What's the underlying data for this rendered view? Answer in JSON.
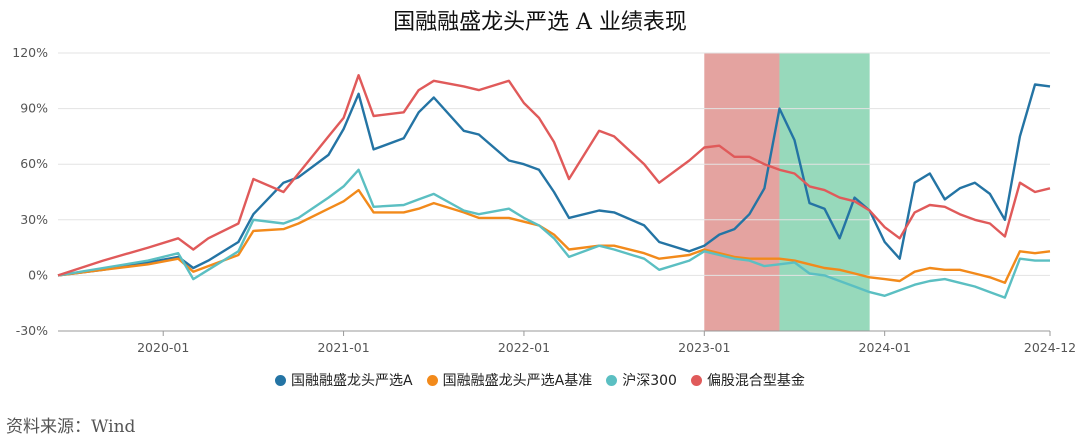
{
  "chart_data": {
    "type": "line",
    "title": "国融融盛龙头严选 A 业绩表现",
    "y_ticks": [
      "120%",
      "90%",
      "60%",
      "30%",
      "0%",
      "-30%"
    ],
    "x_ticks": [
      "2020-01",
      "2021-01",
      "2022-01",
      "2023-01",
      "2024-01",
      "2024-12"
    ],
    "ylim": [
      -30,
      120
    ],
    "xlim": [
      "2019-06",
      "2024-12"
    ],
    "grid": "horizontal",
    "legend_position": "bottom",
    "shaded_periods": [
      {
        "start": "2023-01",
        "end": "2023-06",
        "color": "#d97f7c"
      },
      {
        "start": "2023-06",
        "end": "2023-12",
        "color": "#6fcaa1"
      }
    ],
    "series": [
      {
        "name": "国融融盛龙头严选A",
        "color": "#2474a4",
        "points": [
          [
            "2019-06",
            0
          ],
          [
            "2019-09",
            3
          ],
          [
            "2019-12",
            7
          ],
          [
            "2020-02",
            10
          ],
          [
            "2020-03",
            4
          ],
          [
            "2020-04",
            8
          ],
          [
            "2020-06",
            18
          ],
          [
            "2020-07",
            33
          ],
          [
            "2020-09",
            50
          ],
          [
            "2020-10",
            53
          ],
          [
            "2020-12",
            65
          ],
          [
            "2021-01",
            79
          ],
          [
            "2021-02",
            98
          ],
          [
            "2021-03",
            68
          ],
          [
            "2021-05",
            74
          ],
          [
            "2021-06",
            88
          ],
          [
            "2021-07",
            96
          ],
          [
            "2021-09",
            78
          ],
          [
            "2021-10",
            76
          ],
          [
            "2021-12",
            62
          ],
          [
            "2022-01",
            60
          ],
          [
            "2022-02",
            57
          ],
          [
            "2022-03",
            45
          ],
          [
            "2022-04",
            31
          ],
          [
            "2022-06",
            35
          ],
          [
            "2022-07",
            34
          ],
          [
            "2022-09",
            27
          ],
          [
            "2022-10",
            18
          ],
          [
            "2022-12",
            13
          ],
          [
            "2023-01",
            16
          ],
          [
            "2023-02",
            22
          ],
          [
            "2023-03",
            25
          ],
          [
            "2023-04",
            33
          ],
          [
            "2023-05",
            47
          ],
          [
            "2023-06",
            90
          ],
          [
            "2023-07",
            73
          ],
          [
            "2023-08",
            39
          ],
          [
            "2023-09",
            36
          ],
          [
            "2023-10",
            20
          ],
          [
            "2023-11",
            42
          ],
          [
            "2023-12",
            35
          ],
          [
            "2024-01",
            18
          ],
          [
            "2024-02",
            9
          ],
          [
            "2024-03",
            50
          ],
          [
            "2024-04",
            55
          ],
          [
            "2024-05",
            41
          ],
          [
            "2024-06",
            47
          ],
          [
            "2024-07",
            50
          ],
          [
            "2024-08",
            44
          ],
          [
            "2024-09",
            30
          ],
          [
            "2024-10",
            75
          ],
          [
            "2024-11",
            103
          ],
          [
            "2024-12",
            102
          ]
        ]
      },
      {
        "name": "国融融盛龙头严选A基准",
        "color": "#f28a1b",
        "points": [
          [
            "2019-06",
            0
          ],
          [
            "2019-09",
            3
          ],
          [
            "2019-12",
            6
          ],
          [
            "2020-02",
            9
          ],
          [
            "2020-03",
            2
          ],
          [
            "2020-04",
            5
          ],
          [
            "2020-06",
            11
          ],
          [
            "2020-07",
            24
          ],
          [
            "2020-09",
            25
          ],
          [
            "2020-10",
            28
          ],
          [
            "2020-12",
            36
          ],
          [
            "2021-01",
            40
          ],
          [
            "2021-02",
            46
          ],
          [
            "2021-03",
            34
          ],
          [
            "2021-05",
            34
          ],
          [
            "2021-06",
            36
          ],
          [
            "2021-07",
            39
          ],
          [
            "2021-09",
            34
          ],
          [
            "2021-10",
            31
          ],
          [
            "2021-12",
            31
          ],
          [
            "2022-01",
            29
          ],
          [
            "2022-02",
            27
          ],
          [
            "2022-03",
            22
          ],
          [
            "2022-04",
            14
          ],
          [
            "2022-06",
            16
          ],
          [
            "2022-07",
            16
          ],
          [
            "2022-09",
            12
          ],
          [
            "2022-10",
            9
          ],
          [
            "2022-12",
            11
          ],
          [
            "2023-01",
            14
          ],
          [
            "2023-02",
            12
          ],
          [
            "2023-03",
            10
          ],
          [
            "2023-04",
            9
          ],
          [
            "2023-05",
            9
          ],
          [
            "2023-06",
            9
          ],
          [
            "2023-07",
            8
          ],
          [
            "2023-08",
            6
          ],
          [
            "2023-09",
            4
          ],
          [
            "2023-10",
            3
          ],
          [
            "2023-11",
            1
          ],
          [
            "2023-12",
            -1
          ],
          [
            "2024-01",
            -2
          ],
          [
            "2024-02",
            -3
          ],
          [
            "2024-03",
            2
          ],
          [
            "2024-04",
            4
          ],
          [
            "2024-05",
            3
          ],
          [
            "2024-06",
            3
          ],
          [
            "2024-07",
            1
          ],
          [
            "2024-08",
            -1
          ],
          [
            "2024-09",
            -4
          ],
          [
            "2024-10",
            13
          ],
          [
            "2024-11",
            12
          ],
          [
            "2024-12",
            13
          ]
        ]
      },
      {
        "name": "沪深300",
        "color": "#5bbfc2",
        "points": [
          [
            "2019-06",
            0
          ],
          [
            "2019-09",
            4
          ],
          [
            "2019-12",
            8
          ],
          [
            "2020-02",
            12
          ],
          [
            "2020-03",
            -2
          ],
          [
            "2020-04",
            3
          ],
          [
            "2020-06",
            13
          ],
          [
            "2020-07",
            30
          ],
          [
            "2020-09",
            28
          ],
          [
            "2020-10",
            31
          ],
          [
            "2020-12",
            42
          ],
          [
            "2021-01",
            48
          ],
          [
            "2021-02",
            57
          ],
          [
            "2021-03",
            37
          ],
          [
            "2021-05",
            38
          ],
          [
            "2021-06",
            41
          ],
          [
            "2021-07",
            44
          ],
          [
            "2021-09",
            35
          ],
          [
            "2021-10",
            33
          ],
          [
            "2021-12",
            36
          ],
          [
            "2022-01",
            31
          ],
          [
            "2022-02",
            27
          ],
          [
            "2022-03",
            20
          ],
          [
            "2022-04",
            10
          ],
          [
            "2022-06",
            16
          ],
          [
            "2022-07",
            14
          ],
          [
            "2022-09",
            9
          ],
          [
            "2022-10",
            3
          ],
          [
            "2022-12",
            8
          ],
          [
            "2023-01",
            13
          ],
          [
            "2023-02",
            11
          ],
          [
            "2023-03",
            9
          ],
          [
            "2023-04",
            8
          ],
          [
            "2023-05",
            5
          ],
          [
            "2023-06",
            6
          ],
          [
            "2023-07",
            7
          ],
          [
            "2023-08",
            1
          ],
          [
            "2023-09",
            0
          ],
          [
            "2023-10",
            -3
          ],
          [
            "2023-11",
            -6
          ],
          [
            "2023-12",
            -9
          ],
          [
            "2024-01",
            -11
          ],
          [
            "2024-02",
            -8
          ],
          [
            "2024-03",
            -5
          ],
          [
            "2024-04",
            -3
          ],
          [
            "2024-05",
            -2
          ],
          [
            "2024-06",
            -4
          ],
          [
            "2024-07",
            -6
          ],
          [
            "2024-08",
            -9
          ],
          [
            "2024-09",
            -12
          ],
          [
            "2024-10",
            9
          ],
          [
            "2024-11",
            8
          ],
          [
            "2024-12",
            8
          ]
        ]
      },
      {
        "name": "偏股混合型基金",
        "color": "#e05a5a",
        "points": [
          [
            "2019-06",
            0
          ],
          [
            "2019-09",
            8
          ],
          [
            "2019-12",
            15
          ],
          [
            "2020-02",
            20
          ],
          [
            "2020-03",
            14
          ],
          [
            "2020-04",
            20
          ],
          [
            "2020-06",
            28
          ],
          [
            "2020-07",
            52
          ],
          [
            "2020-09",
            45
          ],
          [
            "2020-10",
            55
          ],
          [
            "2020-12",
            75
          ],
          [
            "2021-01",
            85
          ],
          [
            "2021-02",
            108
          ],
          [
            "2021-03",
            86
          ],
          [
            "2021-05",
            88
          ],
          [
            "2021-06",
            100
          ],
          [
            "2021-07",
            105
          ],
          [
            "2021-09",
            102
          ],
          [
            "2021-10",
            100
          ],
          [
            "2021-12",
            105
          ],
          [
            "2022-01",
            93
          ],
          [
            "2022-02",
            85
          ],
          [
            "2022-03",
            72
          ],
          [
            "2022-04",
            52
          ],
          [
            "2022-06",
            78
          ],
          [
            "2022-07",
            75
          ],
          [
            "2022-09",
            60
          ],
          [
            "2022-10",
            50
          ],
          [
            "2022-12",
            62
          ],
          [
            "2023-01",
            69
          ],
          [
            "2023-02",
            70
          ],
          [
            "2023-03",
            64
          ],
          [
            "2023-04",
            64
          ],
          [
            "2023-05",
            60
          ],
          [
            "2023-06",
            57
          ],
          [
            "2023-07",
            55
          ],
          [
            "2023-08",
            48
          ],
          [
            "2023-09",
            46
          ],
          [
            "2023-10",
            42
          ],
          [
            "2023-11",
            40
          ],
          [
            "2023-12",
            35
          ],
          [
            "2024-01",
            26
          ],
          [
            "2024-02",
            20
          ],
          [
            "2024-03",
            34
          ],
          [
            "2024-04",
            38
          ],
          [
            "2024-05",
            37
          ],
          [
            "2024-06",
            33
          ],
          [
            "2024-07",
            30
          ],
          [
            "2024-08",
            28
          ],
          [
            "2024-09",
            21
          ],
          [
            "2024-10",
            50
          ],
          [
            "2024-11",
            45
          ],
          [
            "2024-12",
            47
          ]
        ]
      }
    ]
  },
  "source": "资料来源：Wind"
}
